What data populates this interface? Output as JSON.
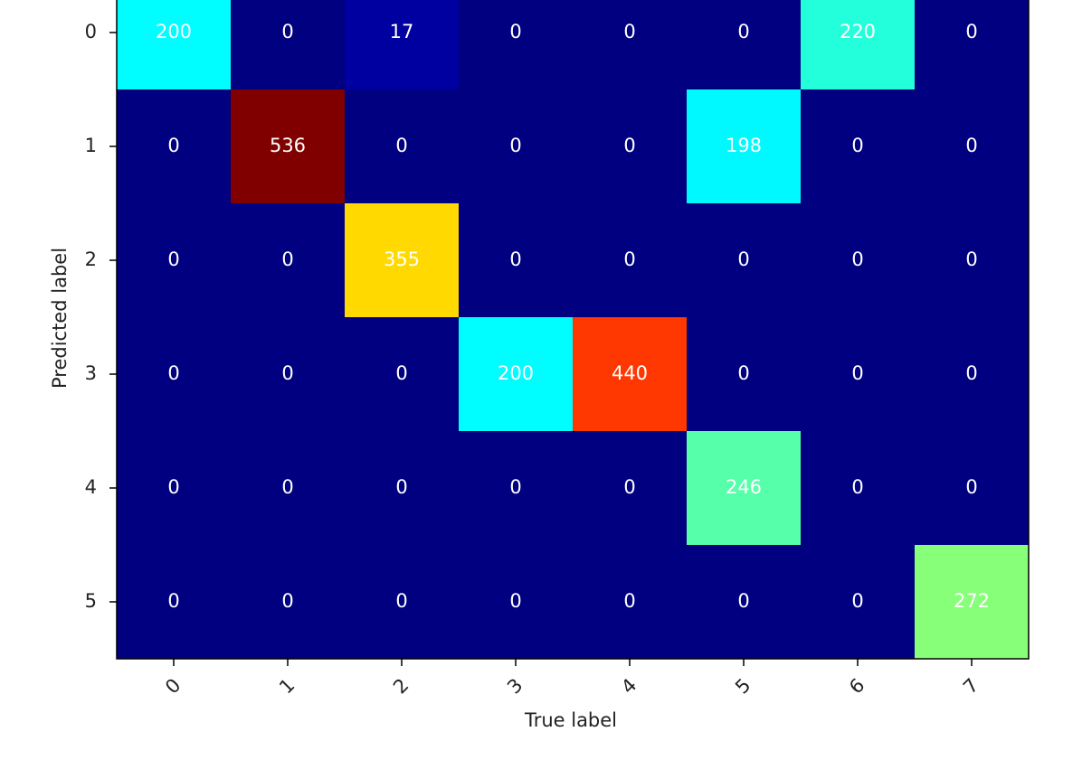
{
  "chart_data": {
    "type": "heatmap",
    "colormap": "jet",
    "x_label": "True label",
    "y_label": "Predicted label",
    "x_categories": [
      0,
      1,
      2,
      3,
      4,
      5,
      6,
      7
    ],
    "y_categories": [
      0,
      1,
      2,
      3,
      4,
      5
    ],
    "values": [
      [
        200,
        0,
        17,
        0,
        0,
        0,
        220,
        0
      ],
      [
        0,
        536,
        0,
        0,
        0,
        198,
        0,
        0
      ],
      [
        0,
        0,
        355,
        0,
        0,
        0,
        0,
        0
      ],
      [
        0,
        0,
        0,
        200,
        440,
        0,
        0,
        0
      ],
      [
        0,
        0,
        0,
        0,
        0,
        246,
        0,
        0
      ],
      [
        0,
        0,
        0,
        0,
        0,
        0,
        0,
        272
      ]
    ]
  }
}
